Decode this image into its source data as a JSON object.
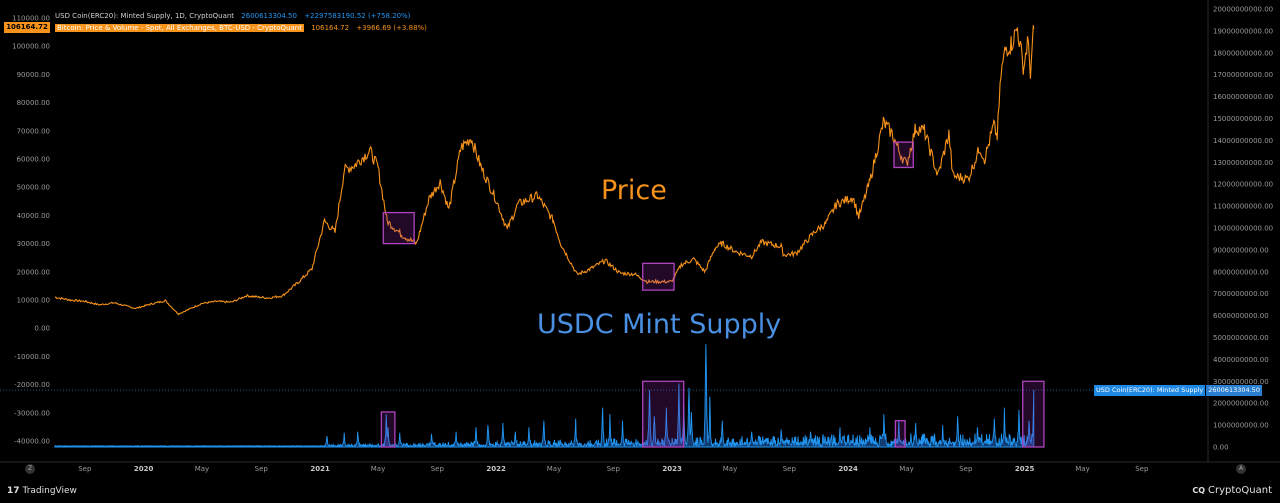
{
  "legend": {
    "usdc_name": "USD Coin(ERC20): Minted Supply, 1D, CryptoQuant",
    "usdc_value": "2600613304.50",
    "usdc_change": "+2297583190.52 (+758.20%)",
    "btc_name": "Bitcoin: Price & Volume - Spot, All Exchanges, BTC-USD - CryptoQuant",
    "btc_value": "106164.72",
    "btc_change": "+3966.69 (+3.88%)"
  },
  "price_tag": "106164.72",
  "usdc_tag": {
    "label": "USD Coin(ERC20): Minted Supply",
    "value": "2600613304.50"
  },
  "annotations": {
    "price": "Price",
    "usdc": "USDC Mint Supply"
  },
  "corners": {
    "left": "Z",
    "right": "A"
  },
  "footer": {
    "tradingview_icon": "17",
    "tradingview": "TradingView",
    "cryptoquant_icon": "CQ",
    "cryptoquant": "CryptoQuant"
  },
  "colors": {
    "price": "#f7931a",
    "usdc": "#2196f3",
    "box": "#b044c0",
    "background": "#000000"
  },
  "chart_data": {
    "type": "line",
    "x_start": "2019-07-01",
    "x_end": "2025-01-20",
    "x_range": [
      "2019-06-25",
      "2026-01-10"
    ],
    "x_ticks": [
      {
        "date": "2019-09-01",
        "label": "Sep"
      },
      {
        "date": "2020-01-01",
        "label": "2020"
      },
      {
        "date": "2020-05-01",
        "label": "May"
      },
      {
        "date": "2020-09-01",
        "label": "Sep"
      },
      {
        "date": "2021-01-01",
        "label": "2021"
      },
      {
        "date": "2021-05-01",
        "label": "May"
      },
      {
        "date": "2021-09-01",
        "label": "Sep"
      },
      {
        "date": "2022-01-01",
        "label": "2022"
      },
      {
        "date": "2022-05-01",
        "label": "May"
      },
      {
        "date": "2022-09-01",
        "label": "Sep"
      },
      {
        "date": "2023-01-01",
        "label": "2023"
      },
      {
        "date": "2023-05-01",
        "label": "May"
      },
      {
        "date": "2023-09-01",
        "label": "Sep"
      },
      {
        "date": "2024-01-01",
        "label": "2024"
      },
      {
        "date": "2024-05-01",
        "label": "May"
      },
      {
        "date": "2024-09-01",
        "label": "Sep"
      },
      {
        "date": "2025-01-01",
        "label": "2025"
      },
      {
        "date": "2025-05-01",
        "label": "May"
      },
      {
        "date": "2025-09-01",
        "label": "Sep"
      }
    ],
    "y_left": {
      "range": [
        -40000,
        110000
      ],
      "ticks": [
        -40000,
        -30000,
        -20000,
        -10000,
        0,
        10000,
        20000,
        30000,
        40000,
        50000,
        60000,
        70000,
        80000,
        90000,
        100000,
        110000
      ],
      "tick_labels": [
        "-40000.00",
        "-30000.00",
        "-20000.00",
        "-10000.00",
        "0.00",
        "10000.00",
        "20000.00",
        "30000.00",
        "40000.00",
        "50000.00",
        "60000.00",
        "70000.00",
        "80000.00",
        "90000.00",
        "100000.00",
        "110000.00"
      ]
    },
    "y_right": {
      "range": [
        0,
        20000000000
      ],
      "ticks": [
        0,
        1000000000,
        2000000000,
        3000000000,
        4000000000,
        5000000000,
        6000000000,
        7000000000,
        8000000000,
        9000000000,
        10000000000,
        11000000000,
        12000000000,
        13000000000,
        14000000000,
        15000000000,
        16000000000,
        17000000000,
        18000000000,
        19000000000,
        20000000000
      ],
      "tick_labels": [
        "0.00",
        "1000000000.00",
        "2000000000.00",
        "3000000000.00",
        "4000000000.00",
        "5000000000.00",
        "6000000000.00",
        "7000000000.00",
        "8000000000.00",
        "9000000000.00",
        "10000000000.00",
        "11000000000.00",
        "12000000000.00",
        "13000000000.00",
        "14000000000.00",
        "15000000000.00",
        "16000000000.00",
        "17000000000.00",
        "18000000000.00",
        "19000000000.00",
        "20000000000.00"
      ]
    },
    "series": [
      {
        "name": "Bitcoin: Price & Volume - Spot, All Exchanges, BTC-USD - CryptoQuant",
        "axis": "left",
        "color": "#f7931a",
        "points": [
          [
            "2019-07-01",
            11000
          ],
          [
            "2019-08-01",
            10000
          ],
          [
            "2019-09-01",
            9500
          ],
          [
            "2019-10-01",
            8300
          ],
          [
            "2019-11-01",
            9000
          ],
          [
            "2019-12-15",
            7000
          ],
          [
            "2020-01-15",
            8500
          ],
          [
            "2020-02-15",
            9800
          ],
          [
            "2020-03-13",
            5000
          ],
          [
            "2020-04-01",
            6500
          ],
          [
            "2020-05-01",
            8800
          ],
          [
            "2020-06-01",
            9500
          ],
          [
            "2020-07-01",
            9200
          ],
          [
            "2020-08-01",
            11500
          ],
          [
            "2020-09-15",
            10700
          ],
          [
            "2020-10-15",
            11500
          ],
          [
            "2020-11-15",
            16000
          ],
          [
            "2020-12-15",
            21000
          ],
          [
            "2021-01-10",
            38000
          ],
          [
            "2021-02-01",
            34000
          ],
          [
            "2021-02-20",
            56000
          ],
          [
            "2021-03-15",
            58000
          ],
          [
            "2021-04-14",
            63000
          ],
          [
            "2021-05-01",
            57000
          ],
          [
            "2021-05-20",
            38000
          ],
          [
            "2021-06-20",
            33000
          ],
          [
            "2021-07-20",
            30000
          ],
          [
            "2021-08-15",
            46000
          ],
          [
            "2021-09-07",
            52000
          ],
          [
            "2021-09-25",
            42000
          ],
          [
            "2021-10-20",
            64000
          ],
          [
            "2021-11-10",
            67500
          ],
          [
            "2021-12-01",
            57000
          ],
          [
            "2021-12-31",
            46000
          ],
          [
            "2022-01-24",
            35000
          ],
          [
            "2022-02-15",
            44000
          ],
          [
            "2022-03-28",
            47000
          ],
          [
            "2022-04-30",
            38000
          ],
          [
            "2022-05-15",
            30000
          ],
          [
            "2022-06-18",
            19000
          ],
          [
            "2022-07-15",
            21000
          ],
          [
            "2022-08-15",
            24000
          ],
          [
            "2022-09-15",
            19500
          ],
          [
            "2022-10-15",
            19200
          ],
          [
            "2022-11-10",
            16500
          ],
          [
            "2022-12-31",
            16500
          ],
          [
            "2023-01-20",
            22500
          ],
          [
            "2023-02-15",
            24500
          ],
          [
            "2023-03-10",
            20000
          ],
          [
            "2023-03-31",
            28500
          ],
          [
            "2023-04-15",
            30000
          ],
          [
            "2023-05-15",
            27000
          ],
          [
            "2023-06-15",
            25500
          ],
          [
            "2023-07-05",
            30500
          ],
          [
            "2023-08-15",
            29000
          ],
          [
            "2023-08-20",
            26000
          ],
          [
            "2023-09-15",
            26500
          ],
          [
            "2023-10-25",
            34500
          ],
          [
            "2023-11-15",
            37000
          ],
          [
            "2023-12-08",
            44000
          ],
          [
            "2024-01-11",
            46500
          ],
          [
            "2024-01-23",
            39500
          ],
          [
            "2024-02-15",
            52000
          ],
          [
            "2024-03-14",
            73000
          ],
          [
            "2024-04-01",
            69000
          ],
          [
            "2024-04-15",
            63000
          ],
          [
            "2024-05-01",
            58000
          ],
          [
            "2024-05-20",
            71000
          ],
          [
            "2024-06-07",
            70000
          ],
          [
            "2024-07-05",
            54000
          ],
          [
            "2024-07-28",
            69000
          ],
          [
            "2024-08-05",
            54000
          ],
          [
            "2024-09-06",
            53000
          ],
          [
            "2024-09-30",
            64000
          ],
          [
            "2024-10-10",
            60000
          ],
          [
            "2024-10-29",
            72000
          ],
          [
            "2024-11-05",
            68000
          ],
          [
            "2024-11-13",
            90000
          ],
          [
            "2024-11-22",
            99000
          ],
          [
            "2024-12-05",
            101000
          ],
          [
            "2024-12-17",
            106500
          ],
          [
            "2024-12-30",
            92000
          ],
          [
            "2025-01-07",
            102000
          ],
          [
            "2025-01-13",
            91000
          ],
          [
            "2025-01-20",
            106164.72
          ]
        ]
      },
      {
        "name": "USD Coin(ERC20): Minted Supply, 1D, CryptoQuant",
        "axis": "right",
        "color": "#2196f3",
        "baseline": 30000000,
        "spikes": [
          [
            "2021-01-15",
            500000000
          ],
          [
            "2021-02-20",
            650000000
          ],
          [
            "2021-03-20",
            700000000
          ],
          [
            "2021-05-18",
            1500000000
          ],
          [
            "2021-05-22",
            900000000
          ],
          [
            "2021-06-15",
            650000000
          ],
          [
            "2021-08-20",
            600000000
          ],
          [
            "2021-10-10",
            700000000
          ],
          [
            "2021-11-20",
            900000000
          ],
          [
            "2021-12-15",
            1000000000
          ],
          [
            "2022-01-15",
            1100000000
          ],
          [
            "2022-02-10",
            700000000
          ],
          [
            "2022-03-10",
            900000000
          ],
          [
            "2022-04-10",
            1200000000
          ],
          [
            "2022-06-15",
            1300000000
          ],
          [
            "2022-08-10",
            1800000000
          ],
          [
            "2022-08-25",
            1500000000
          ],
          [
            "2022-09-20",
            1200000000
          ],
          [
            "2022-11-15",
            2600000000
          ],
          [
            "2022-11-25",
            1400000000
          ],
          [
            "2022-12-20",
            1800000000
          ],
          [
            "2023-01-15",
            2900000000
          ],
          [
            "2023-01-25",
            2000000000
          ],
          [
            "2023-02-05",
            2700000000
          ],
          [
            "2023-02-10",
            1600000000
          ],
          [
            "2023-03-12",
            4700000000
          ],
          [
            "2023-03-20",
            2300000000
          ],
          [
            "2023-04-15",
            1200000000
          ],
          [
            "2023-06-15",
            700000000
          ],
          [
            "2023-08-15",
            800000000
          ],
          [
            "2023-10-15",
            700000000
          ],
          [
            "2023-12-15",
            900000000
          ],
          [
            "2024-02-15",
            900000000
          ],
          [
            "2024-03-15",
            1500000000
          ],
          [
            "2024-04-15",
            1200000000
          ],
          [
            "2024-05-20",
            1100000000
          ],
          [
            "2024-07-15",
            1000000000
          ],
          [
            "2024-08-15",
            1400000000
          ],
          [
            "2024-09-25",
            900000000
          ],
          [
            "2024-10-30",
            1300000000
          ],
          [
            "2024-11-20",
            1800000000
          ],
          [
            "2024-12-20",
            1700000000
          ],
          [
            "2025-01-10",
            1200000000
          ],
          [
            "2025-01-20",
            2600613304.5
          ]
        ]
      }
    ],
    "highlight_boxes": [
      {
        "start": "2021-05-12",
        "end": "2021-07-15",
        "y_low": 30000,
        "y_high": 41000,
        "axis": "left"
      },
      {
        "start": "2022-11-01",
        "end": "2023-01-05",
        "y_low": 13500,
        "y_high": 23000,
        "axis": "left"
      },
      {
        "start": "2024-04-05",
        "end": "2024-05-15",
        "y_low": 57000,
        "y_high": 66000,
        "axis": "left"
      },
      {
        "start": "2021-05-08",
        "end": "2021-06-05",
        "y_low": 0,
        "y_high": 1600000000,
        "axis": "right"
      },
      {
        "start": "2022-11-01",
        "end": "2023-01-25",
        "y_low": 0,
        "y_high": 3000000000,
        "axis": "right"
      },
      {
        "start": "2024-04-08",
        "end": "2024-04-28",
        "y_low": 0,
        "y_high": 1200000000,
        "axis": "right"
      },
      {
        "start": "2024-12-28",
        "end": "2025-02-10",
        "y_low": 0,
        "y_high": 3000000000,
        "axis": "right"
      }
    ],
    "reference_line": {
      "axis": "right",
      "value": 2600613304.5,
      "style": "dotted"
    }
  }
}
